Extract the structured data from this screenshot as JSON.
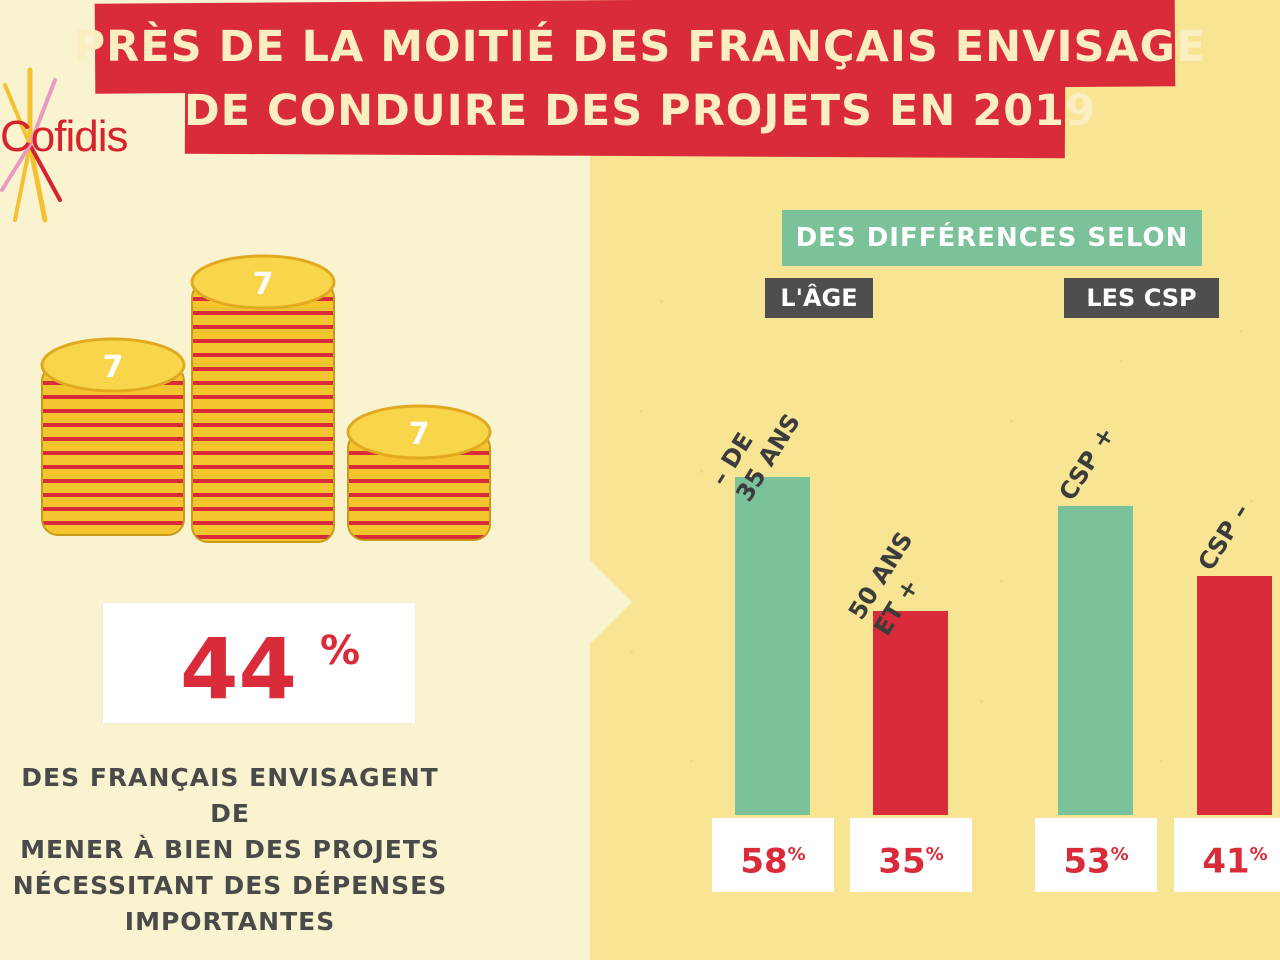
{
  "brand": {
    "logo_text": "Cofidis",
    "red": "#d92b3a",
    "green": "#7bc19a"
  },
  "title": {
    "line1": "PRÈS DE LA MOITIÉ DES FRANÇAIS ENVISAGE",
    "line2": "DE CONDUIRE DES PROJETS EN 2019"
  },
  "headline": {
    "value": "44",
    "unit": "%",
    "description": "DES FRANÇAIS ENVISAGENT DE MENER À BIEN DES PROJETS NÉCESSITANT DES DÉPENSES IMPORTANTES",
    "description_lines": [
      "DES FRANÇAIS ENVISAGENT DE",
      "MENER À BIEN DES PROJETS",
      "NÉCESSITANT DES DÉPENSES",
      "IMPORTANTES"
    ]
  },
  "chart_data": {
    "type": "bar",
    "title": "DES DIFFÉRENCES SELON",
    "groups": [
      "L'ÂGE",
      "LES CSP"
    ],
    "categories": [
      "– DE 35 ANS",
      "50 ANS ET +",
      "CSP +",
      "CSP –"
    ],
    "values": [
      58,
      35,
      53,
      41
    ],
    "value_labels": [
      "58",
      "35",
      "53",
      "41"
    ],
    "unit": "%",
    "colors": [
      "#7bc19a",
      "#d92b3a",
      "#7bc19a",
      "#d92b3a"
    ],
    "grid": false,
    "legend": "none"
  },
  "labels": {
    "cat0_lines": "– DE\n35 ANS",
    "cat1_lines": "50 ANS\nET +",
    "cat2_lines": "CSP +",
    "cat3_lines": "CSP –"
  }
}
